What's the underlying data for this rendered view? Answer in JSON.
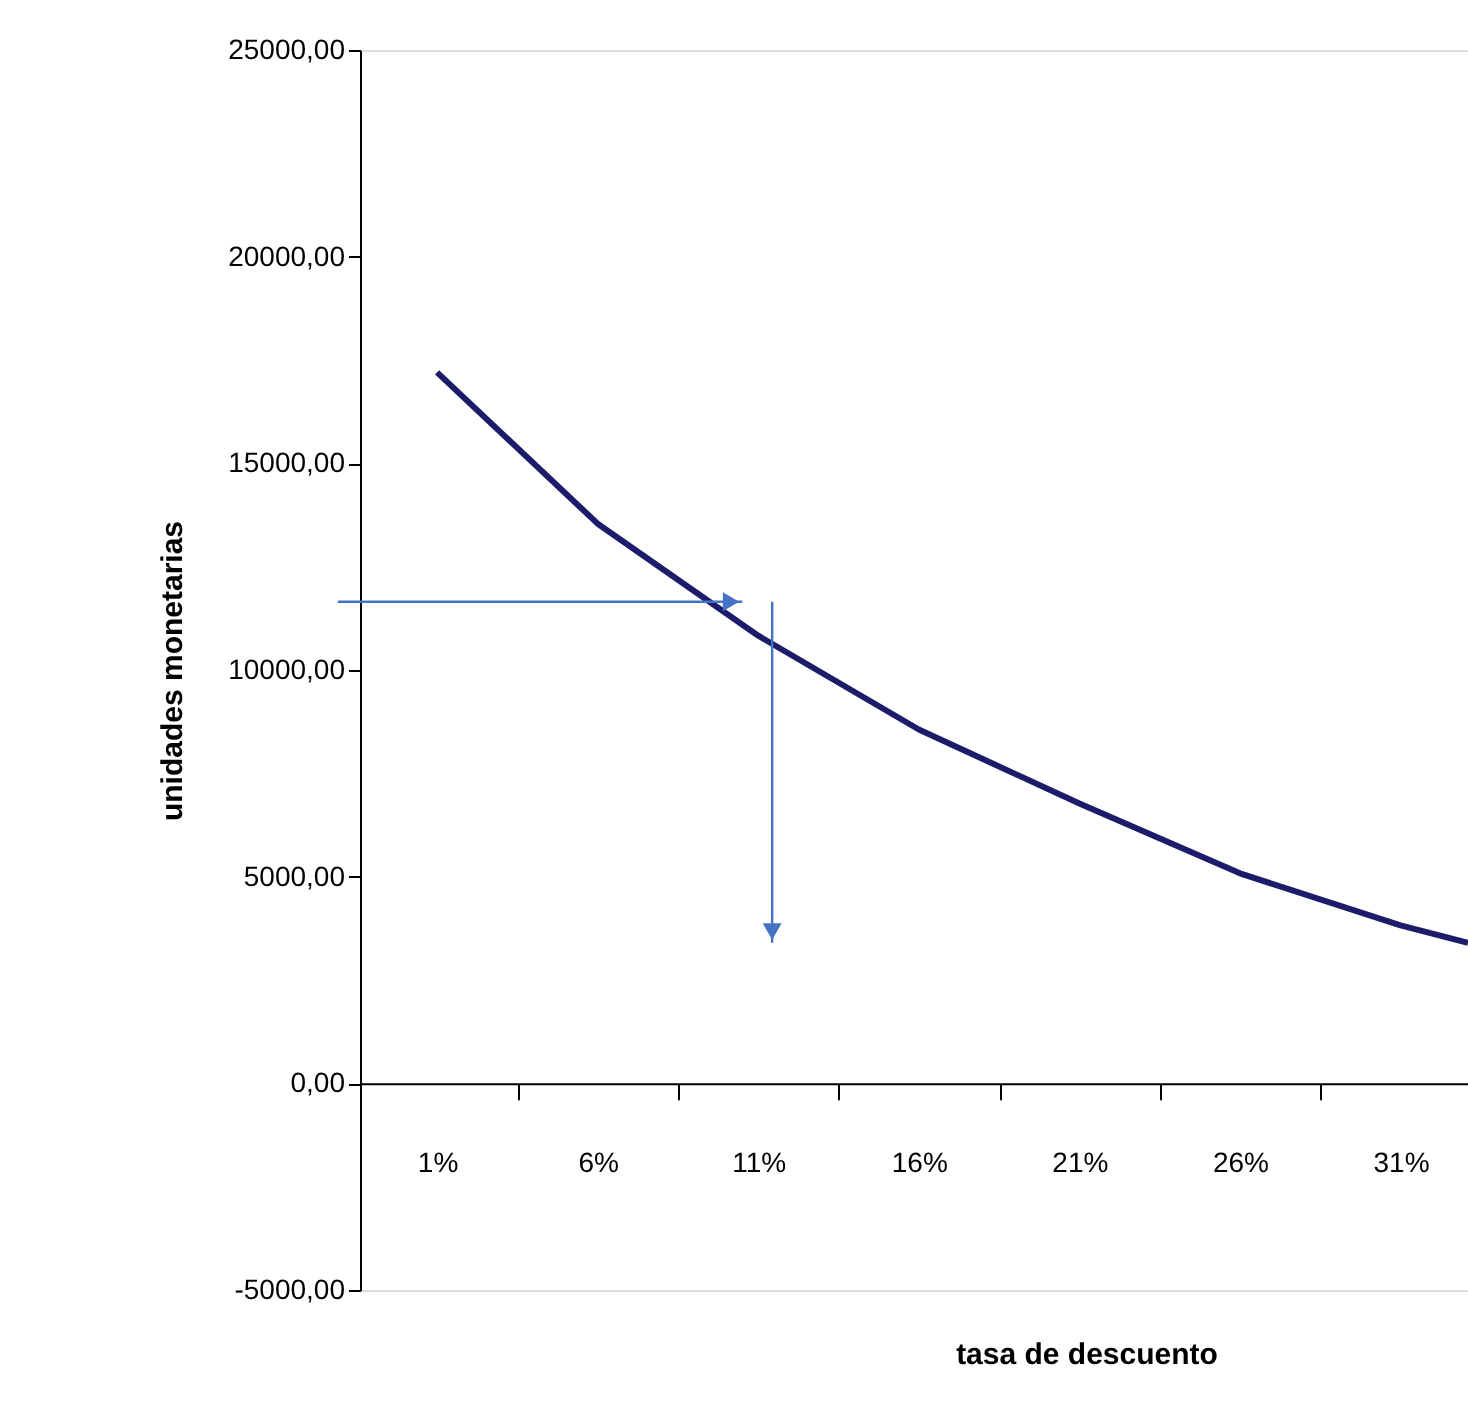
{
  "chart_data": {
    "type": "line",
    "xlabel": "tasa de descuento",
    "ylabel": "unidades monetarias",
    "x": [
      1,
      6,
      11,
      16,
      21,
      26,
      31,
      33.1
    ],
    "series": [
      {
        "color": "#1c1c6b",
        "values": [
          17200,
          13540,
          10830,
          8560,
          6770,
          5080,
          3820,
          3400
        ]
      }
    ],
    "xlim": [
      -1.4,
      33.1
    ],
    "xticks": [
      {
        "value": 1,
        "label": "1%"
      },
      {
        "value": 3.5,
        "label": null
      },
      {
        "value": 6,
        "label": "6%"
      },
      {
        "value": 8.5,
        "label": null
      },
      {
        "value": 11,
        "label": "11%"
      },
      {
        "value": 13.5,
        "label": null
      },
      {
        "value": 16,
        "label": "16%"
      },
      {
        "value": 18.5,
        "label": null
      },
      {
        "value": 21,
        "label": "21%"
      },
      {
        "value": 23.5,
        "label": null
      },
      {
        "value": 26,
        "label": "26%"
      },
      {
        "value": 28.5,
        "label": null
      },
      {
        "value": 31,
        "label": "31%"
      }
    ],
    "ylim": [
      -5000,
      25000
    ],
    "yticks": [
      {
        "value": -5000,
        "label": "-5000,00"
      },
      {
        "value": 0,
        "label": "0,00"
      },
      {
        "value": 5000,
        "label": "5000,00"
      },
      {
        "value": 10000,
        "label": "10000,00"
      },
      {
        "value": 15000,
        "label": "15000,00"
      },
      {
        "value": 20000,
        "label": "20000,00"
      },
      {
        "value": 25000,
        "label": "25000,00"
      }
    ],
    "grid": false,
    "marker": "none",
    "line_style": "solid"
  }
}
